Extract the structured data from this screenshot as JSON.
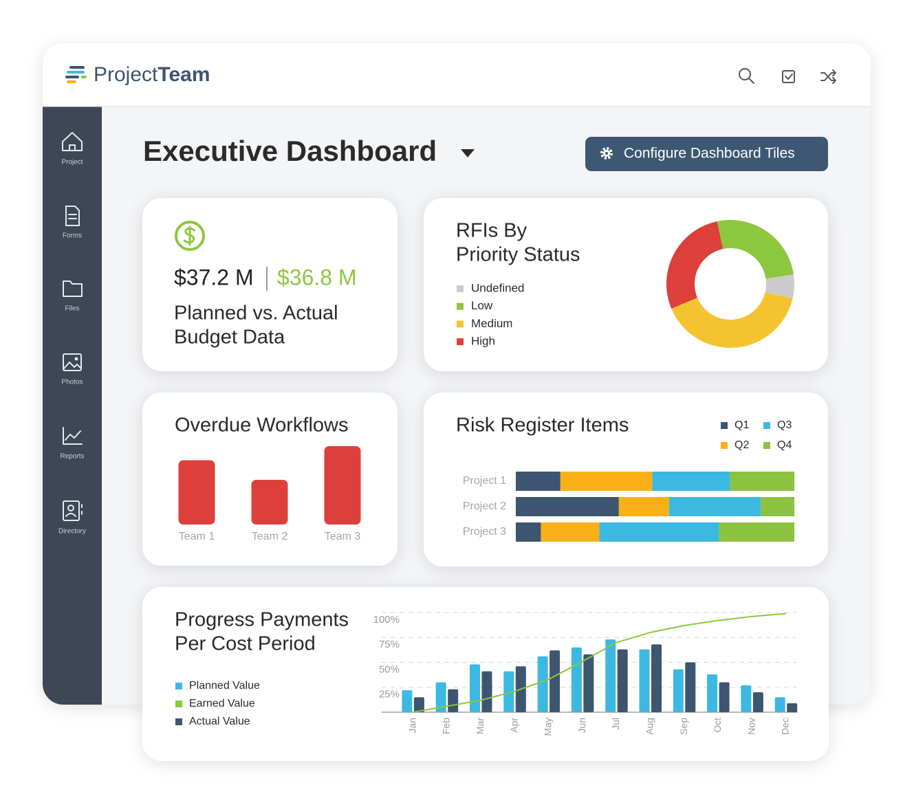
{
  "header": {
    "logo": {
      "light": "Project",
      "bold": "Team"
    }
  },
  "sidebar": [
    "Project",
    "Forms",
    "Files",
    "Photos",
    "Reports",
    "Directory"
  ],
  "page": {
    "title": "Executive Dashboard",
    "button": "Configure Dashboard Tiles"
  },
  "budget": {
    "planned": "$37.2 M",
    "actual": "$36.8 M",
    "title_lines": [
      "Planned vs. Actual",
      "Budget Data"
    ]
  },
  "chart_data": [
    {
      "type": "donut",
      "title_lines": [
        "RFIs By",
        "Priority Status"
      ],
      "categories": [
        "Undefined",
        "Low",
        "Medium",
        "High"
      ],
      "values": [
        6,
        26,
        40,
        28
      ],
      "colors": [
        "#cccccc",
        "#8dc63f",
        "#f4c430",
        "#dd3f3a"
      ]
    },
    {
      "type": "bar",
      "title": "Overdue Workflows",
      "categories": [
        "Team 1",
        "Team 2",
        "Team 3"
      ],
      "values": [
        8.2,
        5.7,
        10
      ],
      "color": "#dd403b",
      "ylim": [
        0,
        10
      ]
    },
    {
      "type": "stacked-hbar",
      "title": "Risk Register Items",
      "categories": [
        "Project 1",
        "Project 2",
        "Project 3"
      ],
      "series": [
        {
          "name": "Q1",
          "color": "#3d5570",
          "values": [
            16,
            37,
            9
          ]
        },
        {
          "name": "Q2",
          "color": "#f9b016",
          "values": [
            33,
            18,
            21
          ]
        },
        {
          "name": "Q3",
          "color": "#3cb9e2",
          "values": [
            28,
            33,
            43
          ]
        },
        {
          "name": "Q4",
          "color": "#8cc23f",
          "values": [
            23,
            12,
            27
          ]
        }
      ],
      "xlim": [
        0,
        100
      ]
    },
    {
      "type": "combo",
      "title_lines": [
        "Progress Payments",
        "Per Cost Period"
      ],
      "categories": [
        "Jan",
        "Feb",
        "Mar",
        "Apr",
        "May",
        "Jun",
        "Jul",
        "Aug",
        "Sep",
        "Oct",
        "Nov",
        "Dec"
      ],
      "series": [
        {
          "name": "Planned Value",
          "kind": "bar",
          "color": "#3cb9e2",
          "values": [
            22,
            30,
            48,
            41,
            56,
            65,
            73,
            63,
            43,
            38,
            27,
            15
          ]
        },
        {
          "name": "Earned Value",
          "kind": "line",
          "color": "#8dc63f",
          "values": [
            0,
            6,
            12,
            21,
            33,
            51,
            70,
            80,
            87,
            92,
            96,
            99
          ]
        },
        {
          "name": "Actual Value",
          "kind": "bar",
          "color": "#3d5570",
          "values": [
            15,
            23,
            41,
            46,
            62,
            58,
            63,
            68,
            50,
            30,
            20,
            9
          ]
        }
      ],
      "ylim": [
        0,
        100
      ],
      "yticks": [
        {
          "value": 25,
          "label": "25%"
        },
        {
          "value": 50,
          "label": "50%"
        },
        {
          "value": 75,
          "label": "75%"
        },
        {
          "value": 100,
          "label": "100%"
        }
      ],
      "grid": true
    }
  ]
}
